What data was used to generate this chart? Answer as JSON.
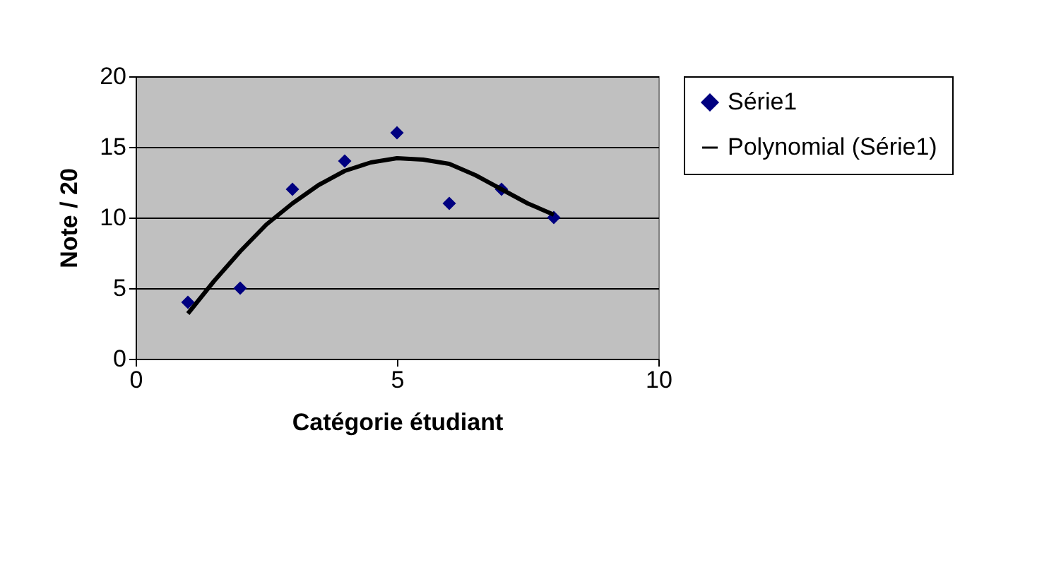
{
  "chart_data": {
    "type": "scatter",
    "xlabel": "Catégorie étudiant",
    "ylabel": "Note / 20",
    "xlim": [
      0,
      10
    ],
    "xticks": [
      0,
      5,
      10
    ],
    "ylim": [
      0,
      20
    ],
    "yticks": [
      0,
      5,
      10,
      15,
      20
    ],
    "grid": "y",
    "legend": "right",
    "series": [
      {
        "name": "Série1",
        "color": "#000080",
        "marker": "diamond",
        "x": [
          1,
          2,
          3,
          4,
          5,
          6,
          7,
          8
        ],
        "values": [
          4,
          5,
          12,
          14,
          16,
          11,
          12,
          10
        ]
      },
      {
        "name": "Polynomial (Série1)",
        "color": "#000000",
        "type": "line",
        "marker": "none",
        "line_style": "solid",
        "x": [
          1,
          1.5,
          2,
          2.5,
          3,
          3.5,
          4,
          4.5,
          5,
          5.5,
          6,
          6.5,
          7,
          7.5,
          8
        ],
        "values": [
          3.2,
          5.5,
          7.6,
          9.5,
          11.0,
          12.3,
          13.3,
          13.9,
          14.2,
          14.1,
          13.8,
          13.0,
          12.0,
          11.0,
          10.2
        ]
      }
    ]
  }
}
